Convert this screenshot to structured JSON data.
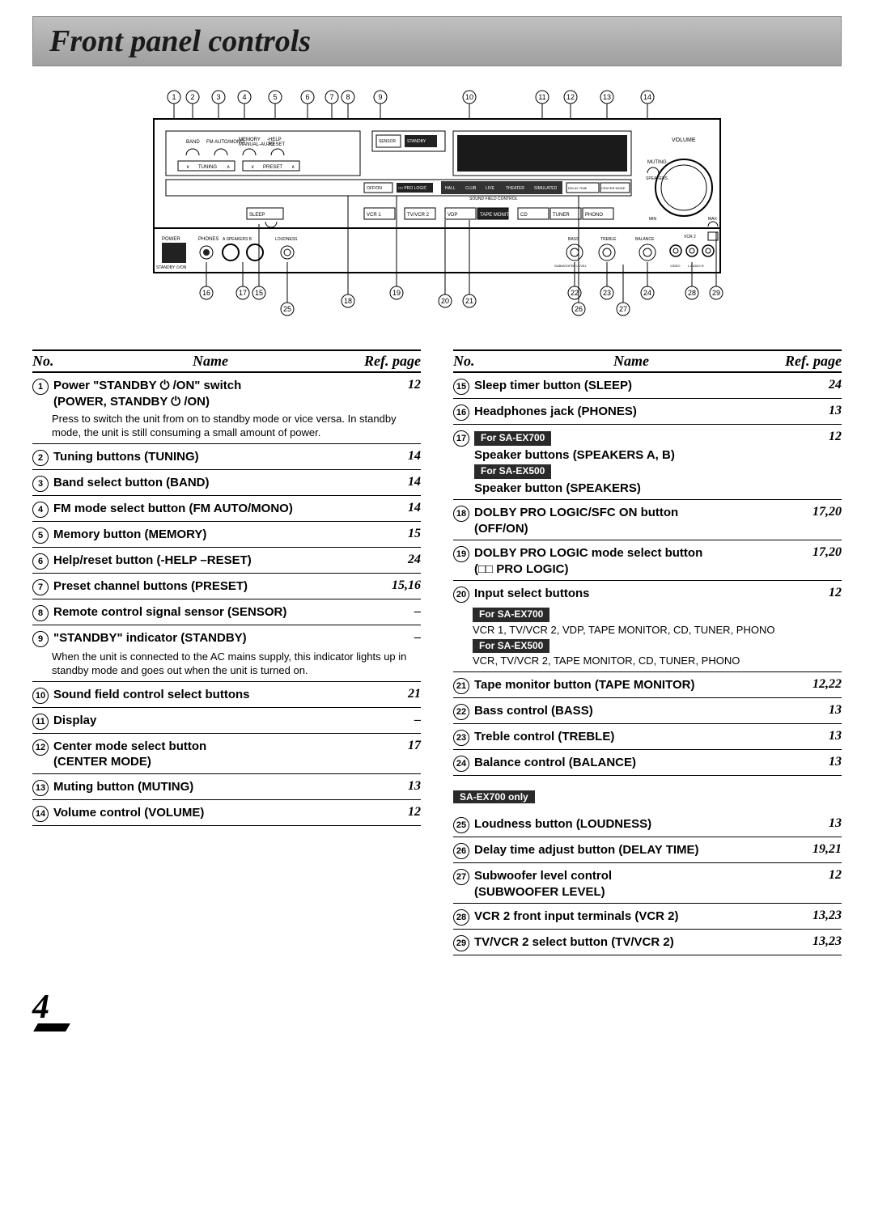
{
  "title": "Front panel controls",
  "page_number": "4",
  "header": {
    "no": "No.",
    "name": "Name",
    "ref": "Ref. page"
  },
  "diagram": {
    "top_numbers": [
      "1",
      "2",
      "3",
      "4",
      "5",
      "6",
      "7",
      "8",
      "9",
      "10",
      "11",
      "12",
      "13",
      "14"
    ],
    "bottom_numbers": [
      "15",
      "16",
      "17",
      "18",
      "19",
      "20",
      "21",
      "22",
      "23",
      "24",
      "25",
      "26",
      "27",
      "28",
      "29"
    ],
    "labels": {
      "band": "BAND",
      "fmauto": "FM AUTO/MONO",
      "memory": "MEMORY",
      "manual": "MANUAL-AUTO",
      "help": "-HELP",
      "reset": "-RESET",
      "tuning": "TUNING",
      "preset": "PRESET",
      "sensor": "SENSOR",
      "standby": "STANDBY",
      "offon": "OFF/ON",
      "prologic": "□□ PRO LOGIC",
      "sfc": "SFC",
      "hall": "HALL",
      "club": "CLUB",
      "live": "LIVE",
      "theater": "THEATER",
      "simu": "SIMULATED",
      "delaytime": "DELAY TIME",
      "centermode": "CENTER MODE",
      "sleep": "SLEEP",
      "vcr1": "VCR 1",
      "tvvcr2": "TV/VCR 2",
      "vdp": "VDP",
      "tapemon": "TAPE MONITOR",
      "cd": "CD",
      "tuner": "TUNER",
      "phono": "PHONO",
      "volume": "VOLUME",
      "muting": "MUTING",
      "speakers": "SPEAKERS",
      "power": "POWER",
      "standbyon": "STANDBY ⏻/ON",
      "phones": "PHONES",
      "aspeakersb": "A SPEAKERS B",
      "loudness": "LOUDNESS",
      "bass": "BASS",
      "treble": "TREBLE",
      "balance": "BALANCE",
      "vcr2": "VCR 2",
      "min": "MIN",
      "max": "MAX",
      "sub": "SUBWOOFER LEVEL",
      "soundfield": "SOUND FIELD CONTROL",
      "tvvcr2btn": "TV/VCR 2",
      "video": "VIDEO",
      "laudio": "L AUDIO R"
    }
  },
  "left": [
    {
      "n": "1",
      "name": "Power \"STANDBY ⏻ /ON\" switch",
      "sub": "(POWER, STANDBY ⏻ /ON)",
      "page": "12",
      "desc": "Press to switch the unit from on to standby mode or vice versa. In standby mode, the unit is still consuming a small amount of power."
    },
    {
      "n": "2",
      "name": "Tuning buttons (TUNING)",
      "page": "14"
    },
    {
      "n": "3",
      "name": "Band select button (BAND)",
      "page": "14"
    },
    {
      "n": "4",
      "name": "FM mode select button (FM AUTO/MONO)",
      "page": "14"
    },
    {
      "n": "5",
      "name": "Memory button (MEMORY)",
      "page": "15"
    },
    {
      "n": "6",
      "name": "Help/reset button (-HELP –RESET)",
      "page": "24"
    },
    {
      "n": "7",
      "name": "Preset channel buttons (PRESET)",
      "page": "15,16"
    },
    {
      "n": "8",
      "name": "Remote control signal sensor (SENSOR)",
      "page": "–"
    },
    {
      "n": "9",
      "name": "\"STANDBY\" indicator (STANDBY)",
      "page": "–",
      "desc": "When the unit is connected to the AC mains supply, this indicator lights up in standby mode and goes out when the unit is turned on."
    },
    {
      "n": "10",
      "name": "Sound field control select buttons",
      "page": "21"
    },
    {
      "n": "11",
      "name": "Display",
      "page": "–"
    },
    {
      "n": "12",
      "name": "Center mode select button",
      "sub": "(CENTER MODE)",
      "page": "17"
    },
    {
      "n": "13",
      "name": "Muting button (MUTING)",
      "page": "13"
    },
    {
      "n": "14",
      "name": "Volume control (VOLUME)",
      "page": "12"
    }
  ],
  "right": [
    {
      "n": "15",
      "name": "Sleep timer button (SLEEP)",
      "page": "24"
    },
    {
      "n": "16",
      "name": "Headphones jack (PHONES)",
      "page": "13"
    },
    {
      "n": "17",
      "model_a": "For SA-EX700",
      "name_a": "Speaker buttons (SPEAKERS A, B)",
      "model_b": "For SA-EX500",
      "name_b": "Speaker button (SPEAKERS)",
      "page": "12"
    },
    {
      "n": "18",
      "name": "DOLBY PRO LOGIC/SFC ON button",
      "sub": "(OFF/ON)",
      "page": "17,20"
    },
    {
      "n": "19",
      "name": "DOLBY PRO LOGIC mode select button",
      "sub": "(□□ PRO LOGIC)",
      "page": "17,20"
    },
    {
      "n": "20",
      "name": "Input select buttons",
      "page": "12",
      "model_a": "For SA-EX700",
      "desc_a": "VCR 1, TV/VCR 2, VDP, TAPE MONITOR, CD, TUNER, PHONO",
      "model_b": "For SA-EX500",
      "desc_b": "VCR, TV/VCR 2, TAPE MONITOR, CD, TUNER, PHONO"
    },
    {
      "n": "21",
      "name": "Tape monitor button (TAPE MONITOR)",
      "page": "12,22"
    },
    {
      "n": "22",
      "name": "Bass control (BASS)",
      "page": "13"
    },
    {
      "n": "23",
      "name": "Treble control (TREBLE)",
      "page": "13"
    },
    {
      "n": "24",
      "name": "Balance control (BALANCE)",
      "page": "13"
    }
  ],
  "ex700_section_title": "SA-EX700 only",
  "ex700": [
    {
      "n": "25",
      "name": "Loudness button (LOUDNESS)",
      "page": "13"
    },
    {
      "n": "26",
      "name": "Delay time adjust button (DELAY TIME)",
      "page": "19,21"
    },
    {
      "n": "27",
      "name": "Subwoofer level control",
      "sub": "(SUBWOOFER LEVEL)",
      "page": "12"
    },
    {
      "n": "28",
      "name": "VCR 2 front input terminals (VCR 2)",
      "page": "13,23"
    },
    {
      "n": "29",
      "name": "TV/VCR 2 select button (TV/VCR 2)",
      "page": "13,23"
    }
  ]
}
